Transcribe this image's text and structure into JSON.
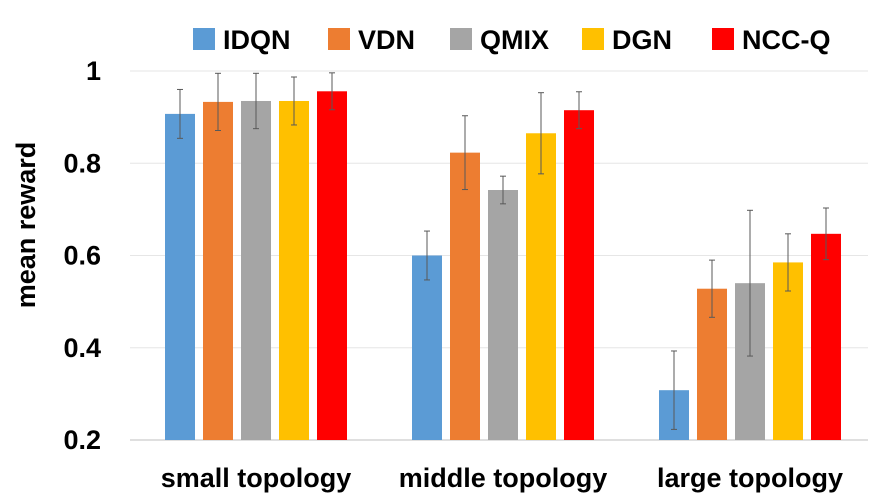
{
  "chart_data": {
    "type": "bar",
    "title": "",
    "xlabel": "",
    "ylabel": "mean reward",
    "ylim": [
      0.2,
      1.0
    ],
    "yticks": [
      "0.2",
      "0.4",
      "0.6",
      "0.8",
      "1"
    ],
    "grid": true,
    "legend_position": "top",
    "categories": [
      "small topology",
      "middle topology",
      "large topology"
    ],
    "series": [
      {
        "name": "IDQN",
        "color": "#5B9BD5",
        "values": [
          0.907,
          0.6,
          0.308
        ],
        "errors": [
          0.053,
          0.053,
          0.085
        ]
      },
      {
        "name": "VDN",
        "color": "#ED7D31",
        "values": [
          0.933,
          0.823,
          0.528
        ],
        "errors": [
          0.062,
          0.08,
          0.062
        ]
      },
      {
        "name": "QMIX",
        "color": "#A5A5A5",
        "values": [
          0.935,
          0.742,
          0.54
        ],
        "errors": [
          0.06,
          0.03,
          0.158
        ]
      },
      {
        "name": "DGN",
        "color": "#FFC000",
        "values": [
          0.935,
          0.865,
          0.585
        ],
        "errors": [
          0.052,
          0.088,
          0.062
        ]
      },
      {
        "name": "NCC-Q",
        "color": "#FF0000",
        "values": [
          0.956,
          0.915,
          0.647
        ],
        "errors": [
          0.04,
          0.04,
          0.056
        ]
      }
    ]
  }
}
